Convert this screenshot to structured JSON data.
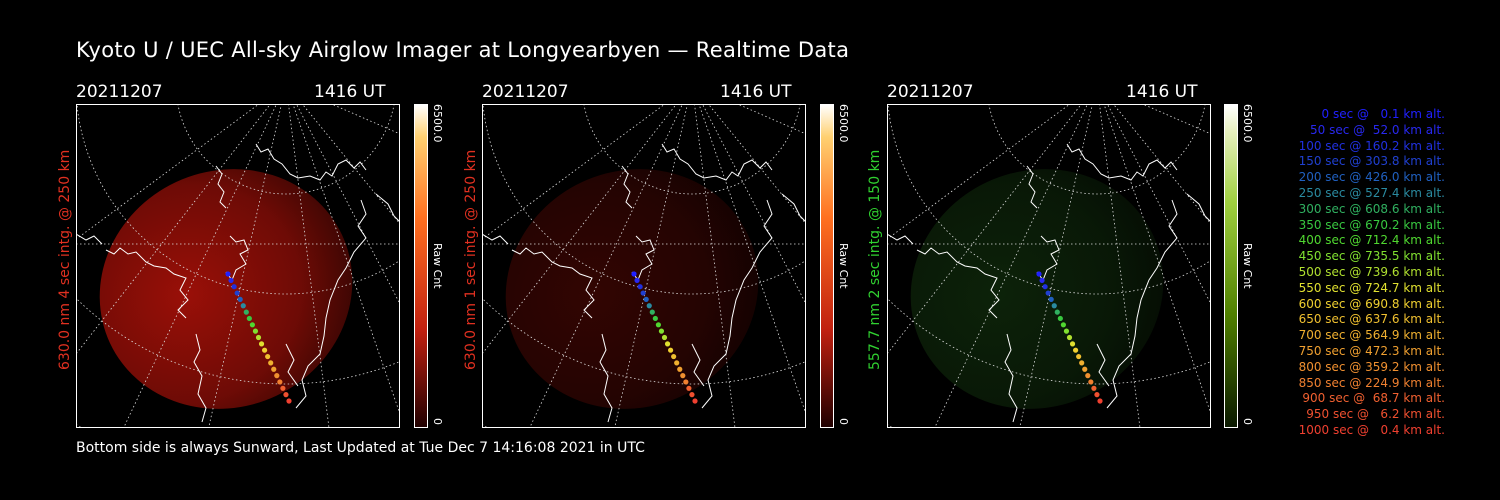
{
  "title": "Kyoto U / UEC All-sky Airglow Imager at Longyearbyen — Realtime Data",
  "footer": "Bottom side is always Sunward, Last Updated at Tue Dec  7 14:16:08 2021 in UTC",
  "colors": {
    "red_label": "#e03020",
    "green_label": "#30d030"
  },
  "panels": [
    {
      "date": "20211207",
      "time": "1416 UT",
      "side_label": "630.0 nm 4 sec intg. @ 250 km",
      "cbar_max": "6500.0",
      "cbar_unit": "Raw Cnt",
      "cbar_min": "0",
      "emission": "red",
      "intensity": 0.55
    },
    {
      "date": "20211207",
      "time": "1416 UT",
      "side_label": "630.0 nm 1 sec intg. @ 250 km",
      "cbar_max": "6500.0",
      "cbar_unit": "Raw Cnt",
      "cbar_min": "0",
      "emission": "red",
      "intensity": 0.18
    },
    {
      "date": "20211207",
      "time": "1416 UT",
      "side_label": "557.7 nm 2 sec intg. @ 150 km",
      "cbar_max": "6500.0",
      "cbar_unit": "Raw Cnt",
      "cbar_min": "0",
      "emission": "green",
      "intensity": 0.22
    }
  ],
  "legend": [
    {
      "text": "0 sec @   0.1 km alt.",
      "color": "#2020ff"
    },
    {
      "text": "50 sec @  52.0 km alt.",
      "color": "#2828f0"
    },
    {
      "text": "100 sec @ 160.2 km alt.",
      "color": "#2030e0"
    },
    {
      "text": "150 sec @ 303.8 km alt.",
      "color": "#2040d0"
    },
    {
      "text": "200 sec @ 426.0 km alt.",
      "color": "#2060c0"
    },
    {
      "text": "250 sec @ 527.4 km alt.",
      "color": "#2a8aa0"
    },
    {
      "text": "300 sec @ 608.6 km alt.",
      "color": "#30b060"
    },
    {
      "text": "350 sec @ 670.2 km alt.",
      "color": "#38c840"
    },
    {
      "text": "400 sec @ 712.4 km alt.",
      "color": "#50d830"
    },
    {
      "text": "450 sec @ 735.5 km alt.",
      "color": "#80e030"
    },
    {
      "text": "500 sec @ 739.6 km alt.",
      "color": "#b0e030"
    },
    {
      "text": "550 sec @ 724.7 km alt.",
      "color": "#e0e030"
    },
    {
      "text": "600 sec @ 690.8 km alt.",
      "color": "#f0d030"
    },
    {
      "text": "650 sec @ 637.6 km alt.",
      "color": "#f0c030"
    },
    {
      "text": "700 sec @ 564.9 km alt.",
      "color": "#f0b030"
    },
    {
      "text": "750 sec @ 472.3 km alt.",
      "color": "#f0a030"
    },
    {
      "text": "800 sec @ 359.2 km alt.",
      "color": "#f09030"
    },
    {
      "text": "850 sec @ 224.9 km alt.",
      "color": "#f08030"
    },
    {
      "text": "900 sec @  68.7 km alt.",
      "color": "#f06030"
    },
    {
      "text": "950 sec @   6.2 km alt.",
      "color": "#f05030"
    },
    {
      "text": "1000 sec @   0.4 km alt.",
      "color": "#f04030"
    }
  ]
}
